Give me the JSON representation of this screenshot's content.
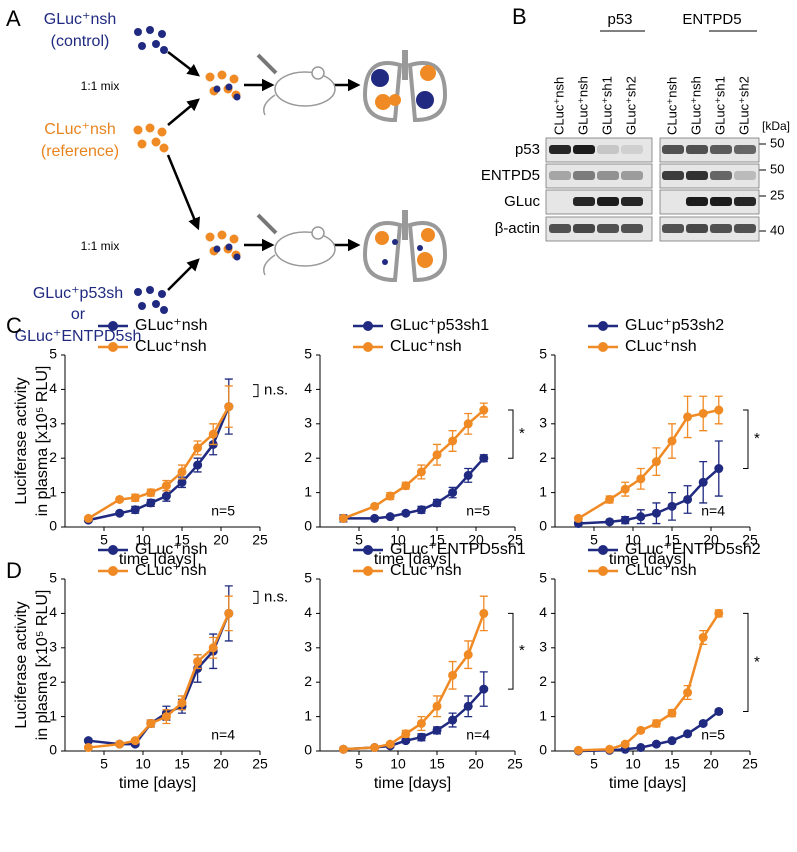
{
  "panel_a": {
    "letter": "A",
    "control_lines": [
      "GLuc⁺nsh",
      "(control)"
    ],
    "reference_lines": [
      "CLuc⁺nsh",
      "(reference)"
    ],
    "mix_labels": [
      "1:1 mix",
      "1:1 mix"
    ],
    "knockdown_lines": [
      "GLuc⁺p53sh",
      "or",
      "GLuc⁺ENTPD5sh"
    ]
  },
  "panel_b": {
    "letter": "B",
    "groups": [
      "p53",
      "ENTPD5"
    ],
    "lanes": [
      "CLuc⁺nsh",
      "GLuc⁺nsh",
      "GLuc⁺sh1",
      "GLuc⁺sh2",
      "CLuc⁺nsh",
      "GLuc⁺nsh",
      "GLuc⁺sh1",
      "GLuc⁺sh2"
    ],
    "rows": [
      "p53",
      "ENTPD5",
      "GLuc",
      "β-actin"
    ],
    "unit": "[kDa]",
    "markers": [
      50,
      50,
      25,
      40
    ]
  },
  "row_letters": [
    "C",
    "D"
  ],
  "chart_data": [
    {
      "type": "line",
      "xlabel": "time [days]",
      "ylabel": [
        "Luciferase activity",
        "in plasma [x10⁵ RLU]"
      ],
      "xlim": [
        0,
        25
      ],
      "xticks": [
        5,
        10,
        15,
        20,
        25
      ],
      "ylim": [
        0,
        5
      ],
      "yticks": [
        0,
        1,
        2,
        3,
        4,
        5
      ],
      "annotation": "n.s.",
      "n_label": "n=5",
      "x": [
        3,
        7,
        9,
        11,
        13,
        15,
        17,
        19,
        21
      ],
      "series": [
        {
          "name": "GLuc⁺nsh",
          "color": "#1f2a80",
          "values": [
            0.2,
            0.4,
            0.5,
            0.7,
            0.9,
            1.3,
            1.8,
            2.4,
            3.5
          ],
          "errors": [
            0.05,
            0.05,
            0.1,
            0.1,
            0.15,
            0.15,
            0.2,
            0.3,
            0.8
          ]
        },
        {
          "name": "CLuc⁺nsh",
          "color": "#f08a24",
          "values": [
            0.25,
            0.8,
            0.85,
            1.0,
            1.2,
            1.6,
            2.3,
            2.7,
            3.5
          ],
          "errors": [
            0.05,
            0.05,
            0.1,
            0.1,
            0.15,
            0.2,
            0.2,
            0.3,
            0.6
          ]
        }
      ]
    },
    {
      "type": "line",
      "xlabel": "time [days]",
      "xlim": [
        0,
        25
      ],
      "xticks": [
        5,
        10,
        15,
        20,
        25
      ],
      "ylim": [
        0,
        5
      ],
      "yticks": [
        0,
        1,
        2,
        3,
        4,
        5
      ],
      "annotation": "*",
      "n_label": "n=5",
      "x": [
        3,
        7,
        9,
        11,
        13,
        15,
        17,
        19,
        21
      ],
      "series": [
        {
          "name": "GLuc⁺p53sh1",
          "color": "#1f2a80",
          "values": [
            0.25,
            0.25,
            0.3,
            0.4,
            0.5,
            0.7,
            1.0,
            1.5,
            2.0
          ],
          "errors": [
            0.1,
            0.05,
            0.05,
            0.05,
            0.1,
            0.1,
            0.15,
            0.2,
            0.1
          ]
        },
        {
          "name": "CLuc⁺nsh",
          "color": "#f08a24",
          "values": [
            0.25,
            0.6,
            0.9,
            1.2,
            1.6,
            2.1,
            2.5,
            3.0,
            3.4
          ],
          "errors": [
            0.05,
            0.05,
            0.1,
            0.1,
            0.2,
            0.3,
            0.3,
            0.3,
            0.2
          ]
        }
      ]
    },
    {
      "type": "line",
      "xlabel": "time [days]",
      "xlim": [
        0,
        25
      ],
      "xticks": [
        5,
        10,
        15,
        20,
        25
      ],
      "ylim": [
        0,
        5
      ],
      "yticks": [
        0,
        1,
        2,
        3,
        4,
        5
      ],
      "annotation": "*",
      "n_label": "n=4",
      "x": [
        3,
        7,
        9,
        11,
        13,
        15,
        17,
        19,
        21
      ],
      "series": [
        {
          "name": "GLuc⁺p53sh2",
          "color": "#1f2a80",
          "values": [
            0.1,
            0.15,
            0.2,
            0.3,
            0.4,
            0.6,
            0.8,
            1.3,
            1.7
          ],
          "errors": [
            0.05,
            0.05,
            0.1,
            0.2,
            0.3,
            0.4,
            0.4,
            0.6,
            0.8
          ]
        },
        {
          "name": "CLuc⁺nsh",
          "color": "#f08a24",
          "values": [
            0.25,
            0.8,
            1.1,
            1.4,
            1.9,
            2.5,
            3.2,
            3.3,
            3.4
          ],
          "errors": [
            0.05,
            0.1,
            0.2,
            0.3,
            0.4,
            0.5,
            0.6,
            0.5,
            0.4
          ]
        }
      ]
    },
    {
      "type": "line",
      "xlabel": "time [days]",
      "ylabel": [
        "Luciferase activity",
        "in plasma [x10⁵ RLU]"
      ],
      "xlim": [
        0,
        25
      ],
      "xticks": [
        5,
        10,
        15,
        20,
        25
      ],
      "ylim": [
        0,
        5
      ],
      "yticks": [
        0,
        1,
        2,
        3,
        4,
        5
      ],
      "annotation": "n.s.",
      "n_label": "n=4",
      "x": [
        3,
        7,
        9,
        11,
        13,
        15,
        17,
        19,
        21
      ],
      "series": [
        {
          "name": "GLuc⁺nsh",
          "color": "#1f2a80",
          "values": [
            0.3,
            0.2,
            0.2,
            0.8,
            1.1,
            1.3,
            2.4,
            2.9,
            4.0
          ],
          "errors": [
            0.05,
            0.05,
            0.05,
            0.1,
            0.2,
            0.2,
            0.4,
            0.5,
            0.8
          ]
        },
        {
          "name": "CLuc⁺nsh",
          "color": "#f08a24",
          "values": [
            0.1,
            0.2,
            0.3,
            0.8,
            1.0,
            1.4,
            2.6,
            3.0,
            4.0
          ],
          "errors": [
            0.05,
            0.05,
            0.05,
            0.1,
            0.2,
            0.2,
            0.2,
            0.3,
            0.5
          ]
        }
      ]
    },
    {
      "type": "line",
      "xlabel": "time [days]",
      "xlim": [
        0,
        25
      ],
      "xticks": [
        5,
        10,
        15,
        20,
        25
      ],
      "ylim": [
        0,
        5
      ],
      "yticks": [
        0,
        1,
        2,
        3,
        4,
        5
      ],
      "annotation": "*",
      "n_label": "n=4",
      "x": [
        3,
        7,
        9,
        11,
        13,
        15,
        17,
        19,
        21
      ],
      "series": [
        {
          "name": "GLuc⁺ENTPD5sh1",
          "color": "#1f2a80",
          "values": [
            0.05,
            0.1,
            0.15,
            0.3,
            0.4,
            0.6,
            0.9,
            1.3,
            1.8
          ],
          "errors": [
            0.02,
            0.02,
            0.05,
            0.05,
            0.1,
            0.1,
            0.2,
            0.3,
            0.5
          ]
        },
        {
          "name": "CLuc⁺nsh",
          "color": "#f08a24",
          "values": [
            0.05,
            0.1,
            0.2,
            0.5,
            0.8,
            1.3,
            2.2,
            2.8,
            4.0
          ],
          "errors": [
            0.02,
            0.02,
            0.05,
            0.1,
            0.2,
            0.3,
            0.4,
            0.4,
            0.5
          ]
        }
      ]
    },
    {
      "type": "line",
      "xlabel": "time [days]",
      "xlim": [
        0,
        25
      ],
      "xticks": [
        5,
        10,
        15,
        20,
        25
      ],
      "ylim": [
        0,
        5
      ],
      "yticks": [
        0,
        1,
        2,
        3,
        4,
        5
      ],
      "annotation": "*",
      "n_label": "n=5",
      "x": [
        3,
        7,
        9,
        11,
        13,
        15,
        17,
        19,
        21
      ],
      "series": [
        {
          "name": "GLuc⁺ENTPD5sh2",
          "color": "#1f2a80",
          "values": [
            0.0,
            0.02,
            0.05,
            0.1,
            0.2,
            0.3,
            0.5,
            0.8,
            1.15
          ],
          "errors": [
            0.01,
            0.01,
            0.02,
            0.02,
            0.03,
            0.05,
            0.05,
            0.05,
            0.05
          ]
        },
        {
          "name": "CLuc⁺nsh",
          "color": "#f08a24",
          "values": [
            0.02,
            0.05,
            0.2,
            0.6,
            0.8,
            1.1,
            1.7,
            3.3,
            4.0
          ],
          "errors": [
            0.01,
            0.02,
            0.05,
            0.05,
            0.1,
            0.1,
            0.2,
            0.2,
            0.1
          ]
        }
      ]
    }
  ]
}
